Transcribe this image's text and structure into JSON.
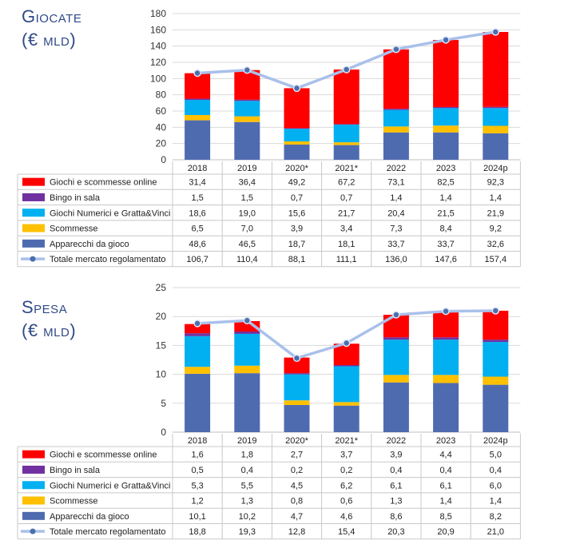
{
  "colors": {
    "online": "#ff0000",
    "bingo": "#7030a0",
    "numerici": "#00b0f0",
    "scommesse": "#ffc000",
    "apparecchi": "#4f6bb0",
    "totale_line": "#a9c0ea",
    "totale_marker": "#4c6fae",
    "title": "#2f4a86"
  },
  "chart_data": [
    {
      "type": "bar",
      "stacked": true,
      "title": "Giocate (€ mld)",
      "categories": [
        "2018",
        "2019",
        "2020*",
        "2021*",
        "2022",
        "2023",
        "2024p"
      ],
      "ylim": [
        0,
        180
      ],
      "yticks": [
        0,
        20,
        40,
        60,
        80,
        100,
        120,
        140,
        160,
        180
      ],
      "grid": true,
      "series": [
        {
          "name": "Giochi e scommesse online",
          "key": "online",
          "values": [
            31.4,
            36.4,
            49.2,
            67.2,
            73.1,
            82.5,
            92.3
          ],
          "labels": [
            "31,4",
            "36,4",
            "49,2",
            "67,2",
            "73,1",
            "82,5",
            "92,3"
          ]
        },
        {
          "name": "Bingo in sala",
          "key": "bingo",
          "values": [
            1.5,
            1.5,
            0.7,
            0.7,
            1.4,
            1.4,
            1.4
          ],
          "labels": [
            "1,5",
            "1,5",
            "0,7",
            "0,7",
            "1,4",
            "1,4",
            "1,4"
          ]
        },
        {
          "name": "Giochi Numerici e Gratta&Vinci",
          "key": "numerici",
          "values": [
            18.6,
            19.0,
            15.6,
            21.7,
            20.4,
            21.5,
            21.9
          ],
          "labels": [
            "18,6",
            "19,0",
            "15,6",
            "21,7",
            "20,4",
            "21,5",
            "21,9"
          ]
        },
        {
          "name": "Scommesse",
          "key": "scommesse",
          "values": [
            6.5,
            7.0,
            3.9,
            3.4,
            7.3,
            8.4,
            9.2
          ],
          "labels": [
            "6,5",
            "7,0",
            "3,9",
            "3,4",
            "7,3",
            "8,4",
            "9,2"
          ]
        },
        {
          "name": "Apparecchi da gioco",
          "key": "apparecchi",
          "values": [
            48.6,
            46.5,
            18.7,
            18.1,
            33.7,
            33.7,
            32.6
          ],
          "labels": [
            "48,6",
            "46,5",
            "18,7",
            "18,1",
            "33,7",
            "33,7",
            "32,6"
          ]
        },
        {
          "name": "Totale mercato regolamentato",
          "key": "totale",
          "type": "line",
          "values": [
            106.7,
            110.4,
            88.1,
            111.1,
            136.0,
            147.6,
            157.4
          ],
          "labels": [
            "106,7",
            "110,4",
            "88,1",
            "111,1",
            "136,0",
            "147,6",
            "157,4"
          ]
        }
      ]
    },
    {
      "type": "bar",
      "stacked": true,
      "title": "Spesa (€ mld)",
      "categories": [
        "2018",
        "2019",
        "2020*",
        "2021*",
        "2022",
        "2023",
        "2024p"
      ],
      "ylim": [
        0,
        25
      ],
      "yticks": [
        0,
        5,
        10,
        15,
        20,
        25
      ],
      "grid": true,
      "series": [
        {
          "name": "Giochi e scommesse online",
          "key": "online",
          "values": [
            1.6,
            1.8,
            2.7,
            3.7,
            3.9,
            4.4,
            5.0
          ],
          "labels": [
            "1,6",
            "1,8",
            "2,7",
            "3,7",
            "3,9",
            "4,4",
            "5,0"
          ]
        },
        {
          "name": "Bingo in sala",
          "key": "bingo",
          "values": [
            0.5,
            0.4,
            0.2,
            0.2,
            0.4,
            0.4,
            0.4
          ],
          "labels": [
            "0,5",
            "0,4",
            "0,2",
            "0,2",
            "0,4",
            "0,4",
            "0,4"
          ]
        },
        {
          "name": "Giochi Numerici e Gratta&Vinci",
          "key": "numerici",
          "values": [
            5.3,
            5.5,
            4.5,
            6.2,
            6.1,
            6.1,
            6.0
          ],
          "labels": [
            "5,3",
            "5,5",
            "4,5",
            "6,2",
            "6,1",
            "6,1",
            "6,0"
          ]
        },
        {
          "name": "Scommesse",
          "key": "scommesse",
          "values": [
            1.2,
            1.3,
            0.8,
            0.6,
            1.3,
            1.4,
            1.4
          ],
          "labels": [
            "1,2",
            "1,3",
            "0,8",
            "0,6",
            "1,3",
            "1,4",
            "1,4"
          ]
        },
        {
          "name": "Apparecchi da gioco",
          "key": "apparecchi",
          "values": [
            10.1,
            10.2,
            4.7,
            4.6,
            8.6,
            8.5,
            8.2
          ],
          "labels": [
            "10,1",
            "10,2",
            "4,7",
            "4,6",
            "8,6",
            "8,5",
            "8,2"
          ]
        },
        {
          "name": "Totale mercato regolamentato",
          "key": "totale",
          "type": "line",
          "values": [
            18.8,
            19.3,
            12.8,
            15.4,
            20.3,
            20.9,
            21.0
          ],
          "labels": [
            "18,8",
            "19,3",
            "12,8",
            "15,4",
            "20,3",
            "20,9",
            "21,0"
          ]
        }
      ]
    }
  ]
}
